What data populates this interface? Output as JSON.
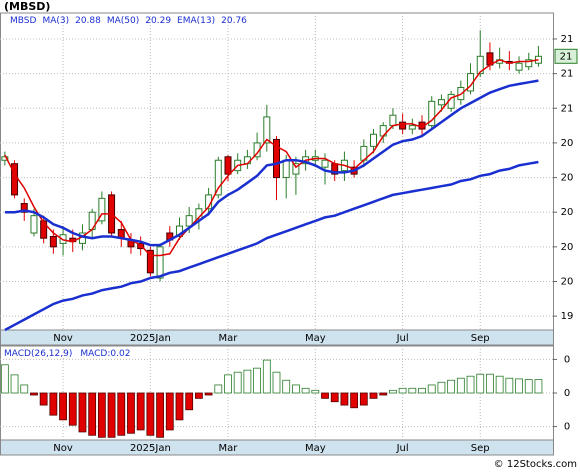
{
  "chart_data": [
    {
      "type": "candlestick",
      "title": "(MBSD)",
      "name": "MBSD",
      "categories": [
        null,
        null,
        null,
        null,
        null,
        null,
        "Nov",
        null,
        null,
        null,
        null,
        null,
        null,
        null,
        null,
        "2025Jan",
        null,
        null,
        null,
        null,
        null,
        null,
        null,
        "Mar",
        null,
        null,
        null,
        null,
        null,
        null,
        null,
        null,
        "May",
        null,
        null,
        null,
        null,
        null,
        null,
        null,
        null,
        "Jul",
        null,
        null,
        null,
        null,
        null,
        null,
        null,
        "Sep",
        null,
        null,
        null,
        null,
        null,
        null
      ],
      "open": [
        20.3,
        20.28,
        20.05,
        19.88,
        19.95,
        19.86,
        19.82,
        19.85,
        19.82,
        19.9,
        19.95,
        20.1,
        19.9,
        19.84,
        19.82,
        19.78,
        19.62,
        19.88,
        19.86,
        19.92,
        19.96,
        20.02,
        20.1,
        20.32,
        20.24,
        20.28,
        20.32,
        20.4,
        20.42,
        20.2,
        20.22,
        20.28,
        20.3,
        20.26,
        20.28,
        20.24,
        20.26,
        20.3,
        20.38,
        20.44,
        20.5,
        20.52,
        20.48,
        20.52,
        20.5,
        20.62,
        20.6,
        20.65,
        20.7,
        20.8,
        20.92,
        20.86,
        20.87,
        20.82,
        20.84,
        20.86
      ],
      "high": [
        20.35,
        20.3,
        20.08,
        20.02,
        19.98,
        19.9,
        19.92,
        19.9,
        19.93,
        20.02,
        20.12,
        20.12,
        19.95,
        19.88,
        19.86,
        19.8,
        19.82,
        19.92,
        19.97,
        20.03,
        20.05,
        20.14,
        20.32,
        20.33,
        20.34,
        20.36,
        20.46,
        20.62,
        20.44,
        20.33,
        20.32,
        20.36,
        20.36,
        20.34,
        20.3,
        20.35,
        20.3,
        20.42,
        20.48,
        20.52,
        20.6,
        20.57,
        20.54,
        20.56,
        20.67,
        20.68,
        20.7,
        20.76,
        20.86,
        21.05,
        20.98,
        20.95,
        20.93,
        20.9,
        20.92,
        20.96
      ],
      "low": [
        20.27,
        20.08,
        19.95,
        19.86,
        19.82,
        19.76,
        19.75,
        19.77,
        19.78,
        19.85,
        19.93,
        19.86,
        19.8,
        19.76,
        19.75,
        19.63,
        19.6,
        19.8,
        19.84,
        19.88,
        19.9,
        19.98,
        20.08,
        20.18,
        20.22,
        20.25,
        20.3,
        20.35,
        20.07,
        20.08,
        20.1,
        20.24,
        20.26,
        20.16,
        20.18,
        20.18,
        20.2,
        20.26,
        20.34,
        20.4,
        20.48,
        20.45,
        20.45,
        20.44,
        20.48,
        20.58,
        20.58,
        20.62,
        20.68,
        20.78,
        20.82,
        20.83,
        20.82,
        20.8,
        20.82,
        20.84
      ],
      "close": [
        20.32,
        20.1,
        20.0,
        19.98,
        19.85,
        19.8,
        19.87,
        19.83,
        19.88,
        20.0,
        20.08,
        19.88,
        19.85,
        19.8,
        19.79,
        19.65,
        19.8,
        19.84,
        19.92,
        19.98,
        20.02,
        20.1,
        20.3,
        20.22,
        20.3,
        20.32,
        20.4,
        20.55,
        20.2,
        20.3,
        20.28,
        20.32,
        20.32,
        20.3,
        20.22,
        20.3,
        20.22,
        20.38,
        20.45,
        20.5,
        20.56,
        20.48,
        20.5,
        20.48,
        20.64,
        20.65,
        20.68,
        20.72,
        20.8,
        20.9,
        20.85,
        20.88,
        20.86,
        20.86,
        20.88,
        20.9
      ],
      "up_color": "#2a7d2a",
      "down_color": "#e00000",
      "series": [
        {
          "name": "MA(3)",
          "color": "#e00000",
          "values": [
            20.33,
            20.22,
            20.14,
            20.03,
            19.94,
            19.88,
            19.84,
            19.83,
            19.86,
            19.9,
            19.99,
            19.99,
            19.94,
            19.84,
            19.81,
            19.75,
            19.75,
            19.76,
            19.85,
            19.91,
            19.97,
            20.03,
            20.14,
            20.21,
            20.27,
            20.28,
            20.34,
            20.42,
            20.38,
            20.35,
            20.26,
            20.3,
            20.31,
            20.31,
            20.28,
            20.27,
            20.25,
            20.3,
            20.35,
            20.44,
            20.5,
            20.51,
            20.51,
            20.49,
            20.53,
            20.59,
            20.66,
            20.68,
            20.73,
            20.81,
            20.85,
            20.88,
            20.86,
            20.87,
            20.87,
            20.88
          ]
        },
        {
          "name": "MA(50)",
          "color": "#1a2fd0",
          "values": [
            19.32,
            19.35,
            19.38,
            19.41,
            19.44,
            19.47,
            19.49,
            19.5,
            19.52,
            19.53,
            19.55,
            19.56,
            19.57,
            19.59,
            19.6,
            19.62,
            19.63,
            19.65,
            19.66,
            19.68,
            19.7,
            19.72,
            19.74,
            19.76,
            19.78,
            19.8,
            19.82,
            19.85,
            19.87,
            19.89,
            19.91,
            19.93,
            19.95,
            19.97,
            19.98,
            20.0,
            20.02,
            20.04,
            20.06,
            20.08,
            20.1,
            20.11,
            20.12,
            20.13,
            20.14,
            20.15,
            20.16,
            20.18,
            20.19,
            20.21,
            20.22,
            20.24,
            20.25,
            20.27,
            20.28,
            20.29
          ]
        },
        {
          "name": "EMA(13)",
          "color": "#1a2fd0",
          "values": [
            20.0,
            20.0,
            20.01,
            20.0,
            19.97,
            19.93,
            19.91,
            19.88,
            19.86,
            19.85,
            19.86,
            19.86,
            19.85,
            19.84,
            19.83,
            19.81,
            19.81,
            19.84,
            19.87,
            19.91,
            19.95,
            19.99,
            20.06,
            20.1,
            20.13,
            20.17,
            20.21,
            20.27,
            20.28,
            20.3,
            20.3,
            20.29,
            20.27,
            20.24,
            20.23,
            20.23,
            20.24,
            20.27,
            20.31,
            20.35,
            20.39,
            20.41,
            20.42,
            20.44,
            20.48,
            20.52,
            20.56,
            20.6,
            20.63,
            20.66,
            20.69,
            20.71,
            20.73,
            20.74,
            20.75,
            20.76
          ]
        }
      ],
      "ylim": [
        19.32,
        21.15
      ],
      "yticks": [
        {
          "value": 21.0,
          "label": "21"
        },
        {
          "value": 20.8,
          "label": "21"
        },
        {
          "value": 20.6,
          "label": "21"
        },
        {
          "value": 20.4,
          "label": "20"
        },
        {
          "value": 20.2,
          "label": "20"
        },
        {
          "value": 20.0,
          "label": "20"
        },
        {
          "value": 19.8,
          "label": "20"
        },
        {
          "value": 19.6,
          "label": "20"
        },
        {
          "value": 19.4,
          "label": "19"
        }
      ],
      "last_label": "21",
      "grid": true
    },
    {
      "type": "bar",
      "title": "MACD(26,12,9)",
      "series": [
        {
          "name": "MACD:",
          "up_color": "#2a7d2a",
          "down_color": "#e00000",
          "values": [
            0.042,
            0.027,
            0.012,
            -0.003,
            -0.018,
            -0.033,
            -0.04,
            -0.048,
            -0.058,
            -0.063,
            -0.066,
            -0.066,
            -0.063,
            -0.06,
            -0.055,
            -0.063,
            -0.066,
            -0.055,
            -0.04,
            -0.025,
            -0.008,
            -0.003,
            0.012,
            0.027,
            0.031,
            0.034,
            0.037,
            0.049,
            0.031,
            0.019,
            0.012,
            0.007,
            0.004,
            -0.008,
            -0.013,
            -0.018,
            -0.022,
            -0.018,
            -0.008,
            -0.003,
            0.004,
            0.007,
            0.007,
            0.007,
            0.012,
            0.016,
            0.019,
            0.022,
            0.025,
            0.028,
            0.028,
            0.025,
            0.022,
            0.021,
            0.02,
            0.02
          ]
        }
      ],
      "ylim": [
        -0.07,
        0.07
      ],
      "yticks": [
        {
          "value": 0.05,
          "label": "0"
        },
        0,
        {
          "value": -0.05,
          "label": "0"
        }
      ],
      "grid": true
    }
  ],
  "footer": "© 12Stocks.com"
}
